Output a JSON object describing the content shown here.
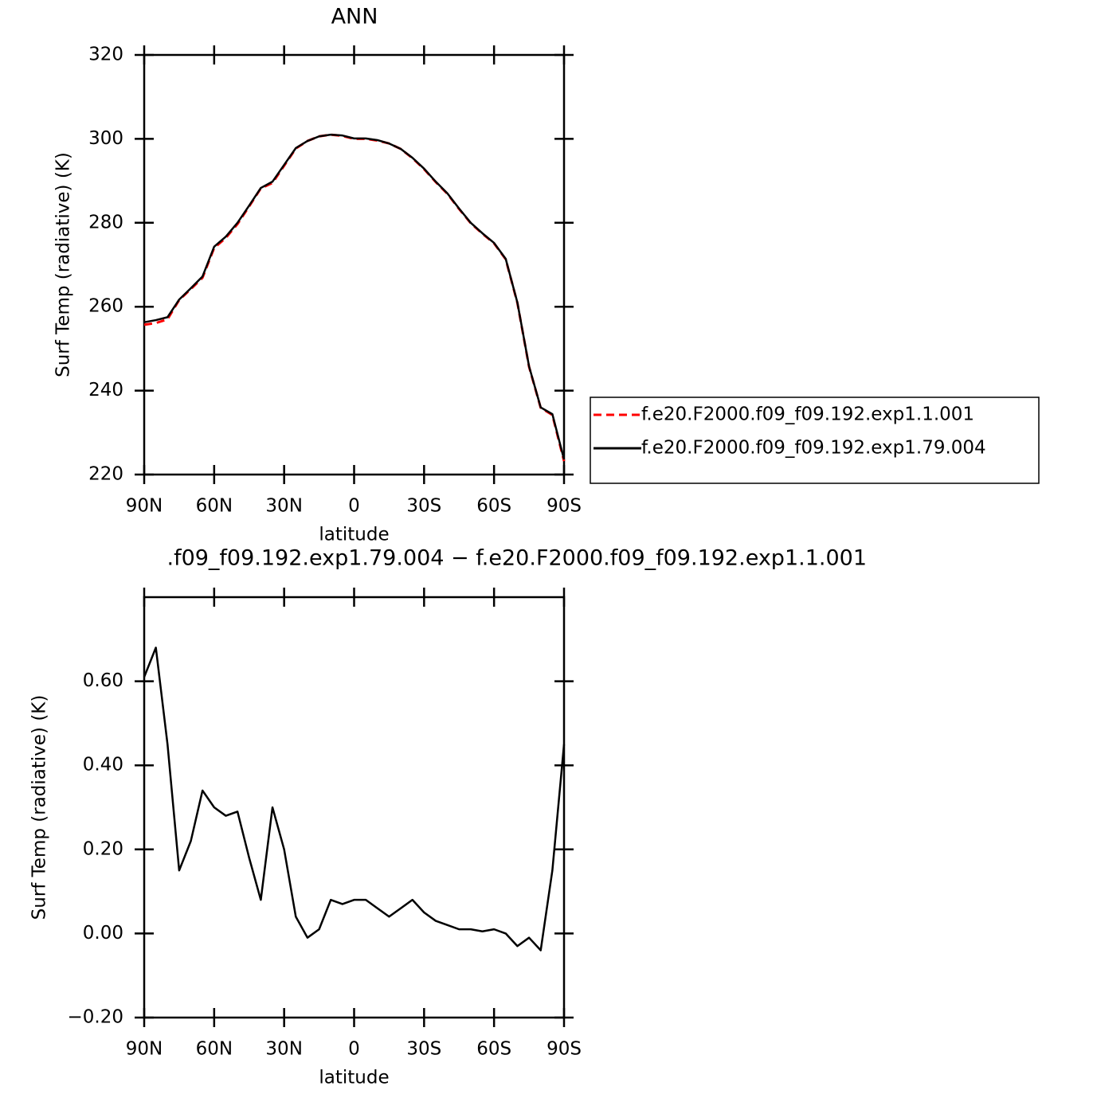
{
  "chart_data": [
    {
      "type": "line",
      "title": "ANN",
      "xlabel": "latitude",
      "ylabel": "Surf Temp (radiative) (K)",
      "x": [
        90,
        85,
        80,
        75,
        70,
        65,
        60,
        55,
        50,
        45,
        40,
        35,
        30,
        25,
        20,
        15,
        10,
        5,
        0,
        -5,
        -10,
        -15,
        -20,
        -25,
        -30,
        -35,
        -40,
        -45,
        -50,
        -55,
        -60,
        -65,
        -70,
        -75,
        -80,
        -85,
        -90
      ],
      "xlim": [
        90,
        -90
      ],
      "xticks": [
        {
          "value": 90,
          "label": "90N"
        },
        {
          "value": 60,
          "label": "60N"
        },
        {
          "value": 30,
          "label": "30N"
        },
        0,
        {
          "value": -30,
          "label": "30S"
        },
        {
          "value": -60,
          "label": "60S"
        },
        {
          "value": -90,
          "label": "90S"
        }
      ],
      "ylim": [
        220,
        320
      ],
      "yticks": [
        220,
        240,
        260,
        280,
        300,
        320
      ],
      "legend": "right",
      "series": [
        {
          "name": "f.e20.F2000.f09_f09.192.exp1.1.001",
          "color": "#ff0000",
          "dash": true,
          "values": [
            255.7,
            256.1,
            257.0,
            261.6,
            264.2,
            266.9,
            274.0,
            276.4,
            279.7,
            283.9,
            288.2,
            289.5,
            293.6,
            297.7,
            299.5,
            300.6,
            301.0,
            300.7,
            300.0,
            300.0,
            299.6,
            298.9,
            297.6,
            295.4,
            292.8,
            289.7,
            286.9,
            283.3,
            279.9,
            277.4,
            275.1,
            271.3,
            260.9,
            245.7,
            235.9,
            234.2,
            223.2
          ]
        },
        {
          "name": "f.e20.F2000.f09_f09.192.exp1.79.004",
          "color": "#000000",
          "dash": false,
          "values": [
            256.3,
            256.8,
            257.5,
            261.7,
            264.4,
            267.2,
            274.3,
            276.7,
            280.0,
            284.1,
            288.3,
            289.8,
            293.8,
            297.8,
            299.5,
            300.6,
            301.0,
            300.8,
            300.1,
            300.1,
            299.7,
            298.9,
            297.6,
            295.5,
            292.9,
            289.8,
            287.0,
            283.4,
            280.0,
            277.5,
            275.2,
            271.4,
            261.0,
            245.8,
            236.0,
            234.4,
            223.6
          ]
        }
      ]
    },
    {
      "type": "line",
      "title": ".f09_f09.192.exp1.79.004 − f.e20.F2000.f09_f09.192.exp1.1.001",
      "xlabel": "latitude",
      "ylabel": "Surf Temp (radiative) (K)",
      "x": [
        90,
        85,
        80,
        75,
        70,
        65,
        60,
        55,
        50,
        45,
        40,
        35,
        30,
        25,
        20,
        15,
        10,
        5,
        0,
        -5,
        -10,
        -15,
        -20,
        -25,
        -30,
        -35,
        -40,
        -45,
        -50,
        -55,
        -60,
        -65,
        -70,
        -75,
        -80,
        -85,
        -90
      ],
      "xlim": [
        90,
        -90
      ],
      "xticks": [
        {
          "value": 90,
          "label": "90N"
        },
        {
          "value": 60,
          "label": "60N"
        },
        {
          "value": 30,
          "label": "30N"
        },
        0,
        {
          "value": -30,
          "label": "30S"
        },
        {
          "value": -60,
          "label": "60S"
        },
        {
          "value": -90,
          "label": "90S"
        }
      ],
      "ylim": [
        -0.2,
        0.8
      ],
      "yticks": [
        {
          "value": -0.2,
          "label": "−0.20"
        },
        {
          "value": 0,
          "label": "0.00"
        },
        {
          "value": 0.2,
          "label": "0.20"
        },
        {
          "value": 0.4,
          "label": "0.40"
        },
        {
          "value": 0.6,
          "label": "0.60"
        }
      ],
      "series": [
        {
          "color": "#000000",
          "dash": false,
          "values": [
            0.61,
            0.68,
            0.45,
            0.15,
            0.22,
            0.34,
            0.3,
            0.28,
            0.29,
            0.18,
            0.08,
            0.3,
            0.2,
            0.04,
            -0.01,
            0.01,
            0.08,
            0.07,
            0.08,
            0.08,
            0.06,
            0.04,
            0.06,
            0.08,
            0.05,
            0.03,
            0.02,
            0.01,
            0.01,
            0.005,
            0.01,
            0.0,
            -0.03,
            -0.01,
            -0.04,
            0.15,
            0.45
          ]
        }
      ]
    }
  ]
}
